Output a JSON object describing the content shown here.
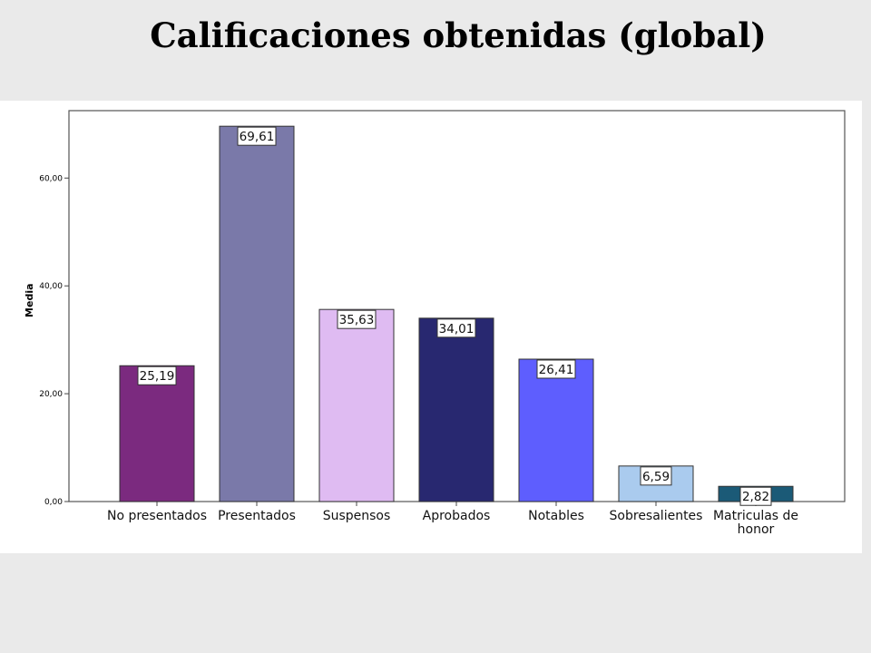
{
  "title": "Calificaciones obtenidas (global)",
  "chart_data": {
    "type": "bar",
    "title": "Calificaciones obtenidas (global)",
    "xlabel": "",
    "ylabel": "Media",
    "ylim": [
      0,
      72.5
    ],
    "yticks": [
      0,
      20,
      40,
      60
    ],
    "ytick_labels": [
      "0,00",
      "20,00",
      "40,00",
      "60,00"
    ],
    "grid": false,
    "legend": "none",
    "categories": [
      "No presentados",
      "Presentados",
      "Suspensos",
      "Aprobados",
      "Notables",
      "Sobresalientes",
      "Matriculas de honor"
    ],
    "category_lines": [
      [
        "No presentados"
      ],
      [
        "Presentados"
      ],
      [
        "Suspensos"
      ],
      [
        "Aprobados"
      ],
      [
        "Notables"
      ],
      [
        "Sobresalientes"
      ],
      [
        "Matriculas de",
        "honor"
      ]
    ],
    "values": [
      25.19,
      69.61,
      35.63,
      34.01,
      26.41,
      6.59,
      2.82
    ],
    "value_labels": [
      "25,19",
      "69,61",
      "35,63",
      "34,01",
      "26,41",
      "6,59",
      "2,82"
    ],
    "colors": [
      "#7b2a7f",
      "#7a79a9",
      "#dfbbf2",
      "#282870",
      "#5e5efe",
      "#aacbee",
      "#1b5a77"
    ]
  }
}
